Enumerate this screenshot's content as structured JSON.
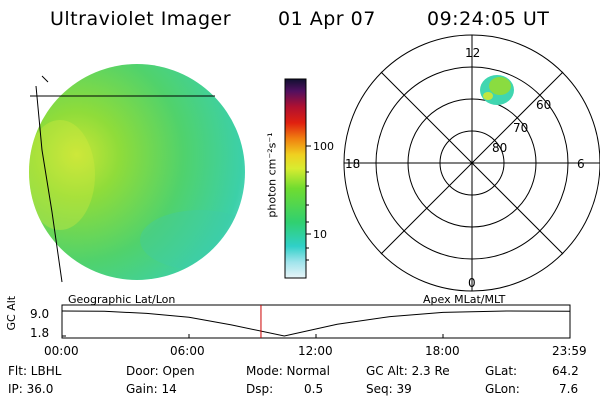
{
  "header": {
    "instrument": "Ultraviolet Imager",
    "date": "01 Apr 07",
    "time": "09:24:05 UT"
  },
  "colorbar": {
    "unit_label": "photon cm⁻²s⁻¹",
    "ticks": [
      "100",
      "10"
    ]
  },
  "polar_plot": {
    "mlt_labels": [
      "12",
      "18",
      "6",
      "0"
    ],
    "lat_labels": [
      "60",
      "70",
      "80"
    ]
  },
  "timeline": {
    "left_title": "Geographic Lat/Lon",
    "right_title": "Apex MLat/MLT",
    "ylabel": "GC Alt",
    "yticks": [
      "9.0",
      "1.8"
    ],
    "xticks": [
      "00:00",
      "06:00",
      "12:00",
      "18:00",
      "23:59"
    ],
    "chart_data": {
      "type": "line",
      "x_hours": [
        0,
        2,
        4,
        6,
        8,
        10.5,
        13,
        15.5,
        18,
        21,
        23.98
      ],
      "values": [
        9.0,
        8.9,
        8.3,
        7.2,
        5.0,
        1.8,
        5.2,
        7.4,
        8.6,
        9.0,
        8.9
      ],
      "ylim": [
        1.8,
        9.0
      ],
      "marker_time_hours": 9.4
    }
  },
  "info": {
    "filter": "Flt: LBHL",
    "ip": "IP: 36.0",
    "door": "Door: Open",
    "gain": "Gain: 14",
    "mode": "Mode: Normal",
    "dsp_label": "Dsp:",
    "dsp_value": "0.5",
    "gc_alt": "GC Alt: 2.3 Re",
    "seq": "Seq: 39",
    "glat_label": "GLat:",
    "glat_value": "64.2",
    "glon_label": "GLon:",
    "glon_value": "7.6"
  }
}
